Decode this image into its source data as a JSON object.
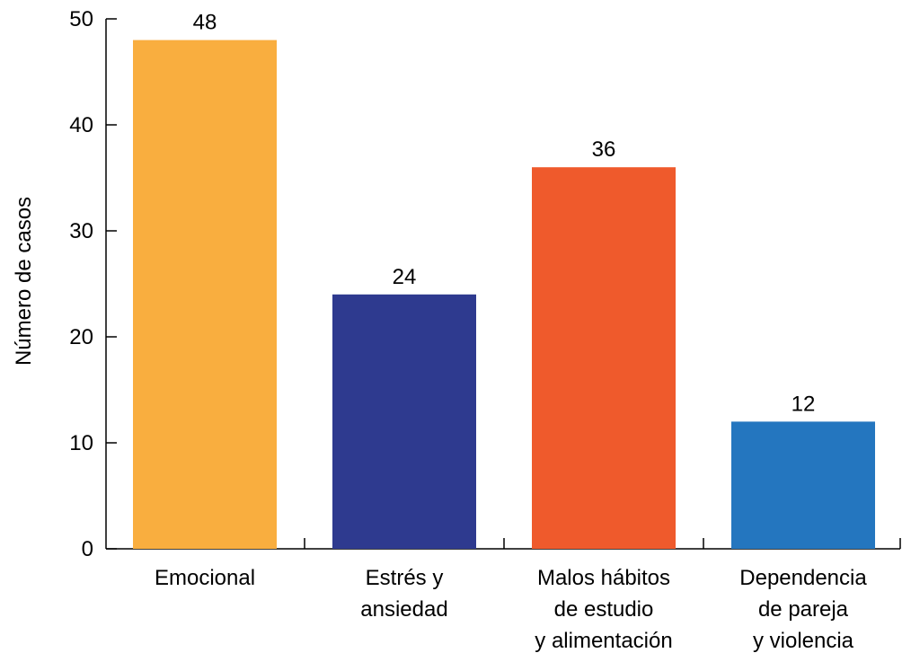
{
  "chart_data": {
    "type": "bar",
    "title": "",
    "xlabel": "",
    "ylabel": "Número de casos",
    "ylim": [
      0,
      50
    ],
    "yticks": [
      0,
      10,
      20,
      30,
      40,
      50
    ],
    "grid": false,
    "categories": [
      [
        "Emocional"
      ],
      [
        "Estrés y",
        "ansiedad"
      ],
      [
        "Malos hábitos",
        "de estudio",
        "y alimentación"
      ],
      [
        "Dependencia",
        "de pareja",
        "y violencia"
      ]
    ],
    "values": [
      48,
      24,
      36,
      12
    ],
    "colors": [
      "#F9AE3F",
      "#2E3A8F",
      "#EF5A2C",
      "#2476BF"
    ]
  }
}
